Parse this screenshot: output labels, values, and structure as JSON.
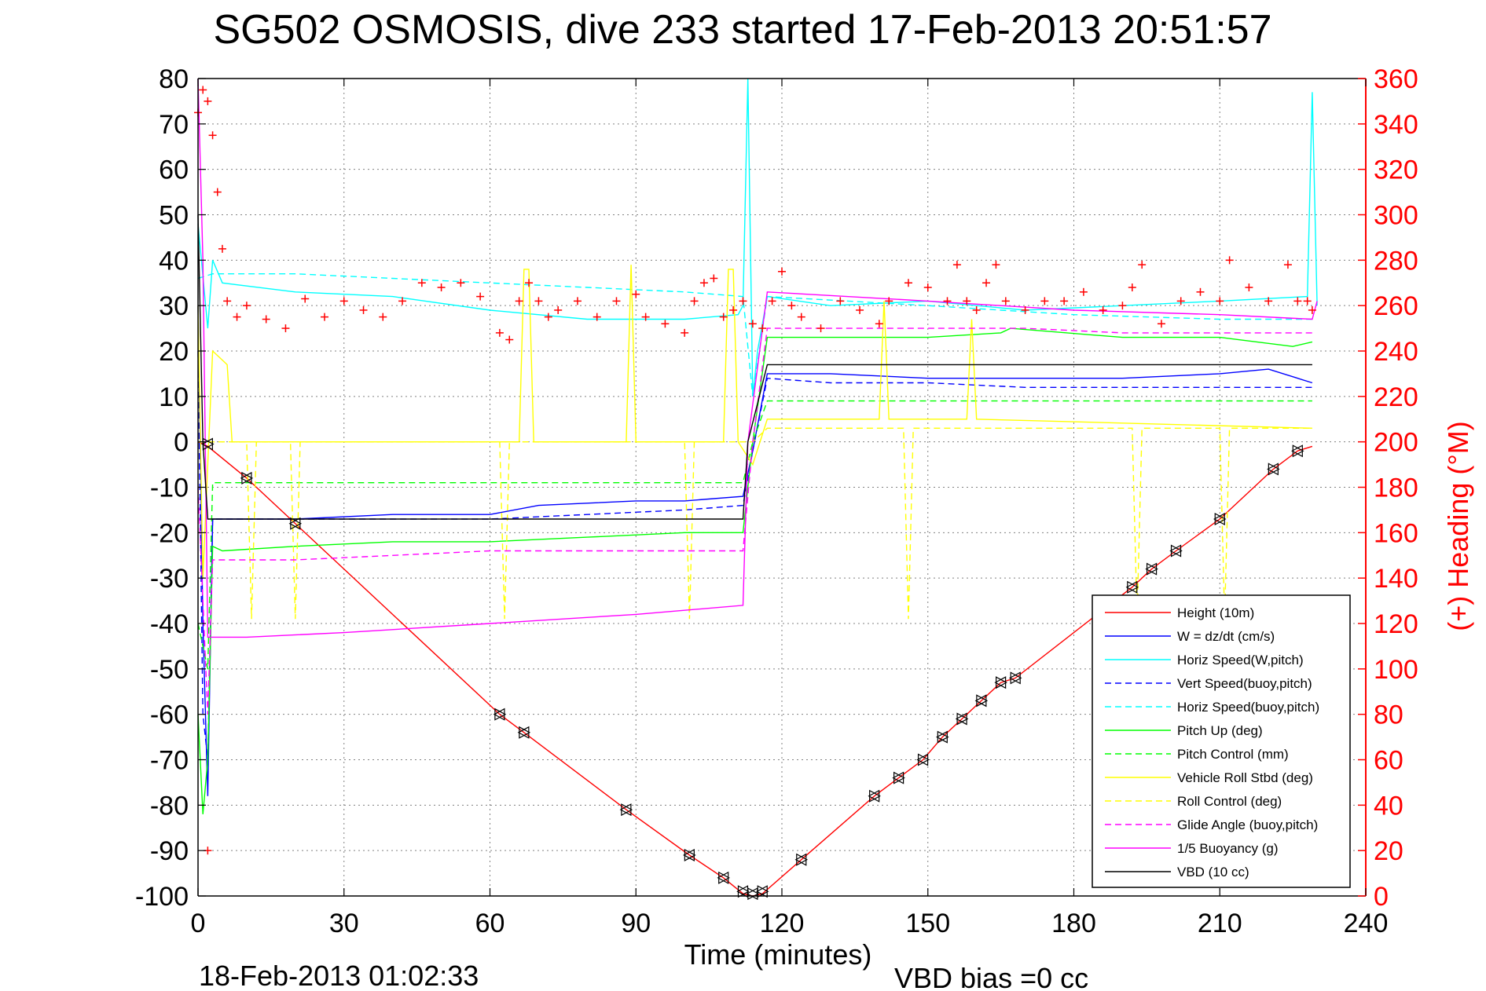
{
  "chart_data": {
    "type": "line",
    "title": "SG502 OSMOSIS, dive 233 started 17-Feb-2013 20:51:57",
    "xlabel": "Time (minutes)",
    "ylabel": "",
    "y2label": "(+) Heading (°M)",
    "footer_left": "18-Feb-2013 01:02:33",
    "footer_right": "VBD bias =0 cc",
    "xlim": [
      0,
      240
    ],
    "ylim": [
      -100,
      80
    ],
    "y2lim": [
      0,
      360
    ],
    "xticks": [
      0,
      30,
      60,
      90,
      120,
      150,
      180,
      210,
      240
    ],
    "yticks": [
      80,
      70,
      60,
      50,
      40,
      30,
      20,
      10,
      0,
      -10,
      -20,
      -30,
      -40,
      -50,
      -60,
      -70,
      -80,
      -90,
      -100
    ],
    "y2ticks": [
      360,
      340,
      320,
      300,
      280,
      260,
      240,
      220,
      200,
      180,
      160,
      140,
      120,
      100,
      80,
      60,
      40,
      20,
      0
    ],
    "grid": true,
    "legend_position": "bottom-right",
    "colors": {
      "axis": "#000000",
      "heading_axis": "#ff0000",
      "grid": "#808080"
    },
    "series": [
      {
        "name": "Height (10m)",
        "color": "#ff0000",
        "dash": "solid",
        "x": [
          0,
          2,
          10,
          20,
          62,
          67,
          88,
          101,
          108,
          112,
          114,
          116,
          124,
          139,
          144,
          149,
          153,
          157,
          161,
          165,
          168,
          192,
          196,
          201,
          210,
          221,
          226,
          229
        ],
        "y": [
          0,
          -1,
          -8,
          -18,
          -60,
          -64,
          -81,
          -91,
          -96,
          -99.5,
          -100,
          -99.5,
          -92,
          -78,
          -74,
          -70,
          -65,
          -61,
          -57,
          -53,
          -52,
          -32,
          -28,
          -24,
          -17,
          -6,
          -2,
          -1
        ]
      },
      {
        "name": "W = dz/dt (cm/s)",
        "color": "#0000ff",
        "dash": "solid",
        "x": [
          0,
          1,
          2,
          3,
          5,
          20,
          40,
          60,
          70,
          90,
          100,
          112,
          114,
          117,
          130,
          150,
          170,
          190,
          210,
          220,
          229
        ],
        "y": [
          30,
          -40,
          -78,
          -17,
          -17,
          -17,
          -16,
          -16,
          -14,
          -13,
          -13,
          -12,
          -2,
          15,
          15,
          14,
          14,
          14,
          15,
          16,
          13
        ]
      },
      {
        "name": "Horiz Speed(W,pitch)",
        "color": "#00ffff",
        "dash": "solid",
        "x": [
          0,
          2,
          3,
          5,
          20,
          40,
          60,
          80,
          100,
          111,
          112,
          113,
          114,
          115,
          117,
          130,
          150,
          170,
          190,
          210,
          228,
          229,
          230
        ],
        "y": [
          48,
          25,
          40,
          35,
          33,
          32,
          29,
          27,
          27,
          28,
          30,
          80,
          10,
          20,
          32,
          30,
          31,
          29,
          30,
          31,
          32,
          77,
          30
        ]
      },
      {
        "name": "Vert Speed(buoy,pitch)",
        "color": "#0000ff",
        "dash": "dashed",
        "x": [
          0,
          1,
          2,
          3,
          5,
          20,
          40,
          60,
          80,
          100,
          112,
          114,
          117,
          130,
          150,
          170,
          190,
          210,
          229
        ],
        "y": [
          20,
          -60,
          -70,
          -17,
          -17,
          -17,
          -17,
          -17,
          -16,
          -15,
          -14,
          -2,
          14,
          13,
          13,
          12,
          12,
          12,
          12
        ]
      },
      {
        "name": "Horiz Speed(buoy,pitch)",
        "color": "#00ffff",
        "dash": "dashed",
        "x": [
          0,
          3,
          20,
          40,
          60,
          80,
          100,
          112,
          114,
          117,
          150,
          180,
          210,
          229
        ],
        "y": [
          36,
          37,
          37,
          36,
          35,
          34,
          33,
          32,
          10,
          32,
          30,
          28,
          27,
          27
        ]
      },
      {
        "name": "Pitch Up (deg)",
        "color": "#00ff00",
        "dash": "solid",
        "x": [
          0,
          1,
          2,
          3,
          5,
          20,
          40,
          60,
          80,
          100,
          112,
          114,
          117,
          130,
          150,
          165,
          167,
          190,
          210,
          225,
          229
        ],
        "y": [
          -60,
          -82,
          -70,
          -23,
          -24,
          -23,
          -22,
          -22,
          -21,
          -20,
          -20,
          0,
          23,
          23,
          23,
          24,
          25,
          23,
          23,
          21,
          22
        ]
      },
      {
        "name": "Pitch Control (mm)",
        "color": "#00ff00",
        "dash": "dashed",
        "x": [
          0,
          2,
          3,
          5,
          112,
          114,
          117,
          229
        ],
        "y": [
          -40,
          -50,
          -9,
          -9,
          -9,
          0,
          9,
          9
        ]
      },
      {
        "name": "Vehicle Roll Stbd (deg)",
        "color": "#ffff00",
        "dash": "solid",
        "x": [
          0,
          1,
          3,
          5,
          6,
          7,
          60,
          66,
          67,
          68,
          69,
          88,
          89,
          90,
          108,
          109,
          110,
          111,
          114,
          117,
          130,
          140,
          141,
          142,
          158,
          159,
          160,
          229
        ],
        "y": [
          30,
          -30,
          20,
          18,
          17,
          0,
          0,
          0,
          38,
          38,
          0,
          0,
          39,
          0,
          0,
          38,
          38,
          0,
          -5,
          5,
          5,
          5,
          31,
          5,
          5,
          27,
          5,
          3
        ]
      },
      {
        "name": "Roll Control (deg)",
        "color": "#ffff00",
        "dash": "dashed",
        "x": [
          0,
          3,
          10,
          11,
          12,
          19,
          20,
          21,
          62,
          63,
          64,
          100,
          101,
          102,
          114,
          117,
          145,
          146,
          147,
          192,
          193,
          194,
          210,
          211,
          212,
          229
        ],
        "y": [
          0,
          0,
          0,
          -39,
          0,
          0,
          -39,
          0,
          0,
          -39,
          0,
          0,
          -39,
          0,
          0,
          3,
          3,
          -39,
          3,
          3,
          -39,
          3,
          3,
          -39,
          3,
          3
        ]
      },
      {
        "name": "Glide Angle (buoy,pitch)",
        "color": "#ff00ff",
        "dash": "dashed",
        "x": [
          0,
          2,
          3,
          5,
          20,
          40,
          60,
          80,
          100,
          112,
          114,
          117,
          130,
          150,
          170,
          190,
          210,
          229
        ],
        "y": [
          -10,
          -60,
          -26,
          -26,
          -26,
          -25,
          -24,
          -24,
          -24,
          -24,
          0,
          25,
          25,
          25,
          25,
          24,
          24,
          24
        ]
      },
      {
        "name": "1/5 Buoyancy (g)",
        "color": "#ff00ff",
        "dash": "solid",
        "x": [
          0,
          1,
          2,
          3,
          10,
          30,
          60,
          90,
          112,
          113,
          117,
          150,
          180,
          210,
          229,
          230
        ],
        "y": [
          80,
          40,
          -43,
          -43,
          -43,
          -42,
          -40,
          -38,
          -36,
          0,
          33,
          31,
          29,
          28,
          27,
          31
        ]
      },
      {
        "name": "VBD (10 cc)",
        "color": "#000000",
        "dash": "solid",
        "x": [
          0,
          1,
          2,
          3,
          112,
          113,
          117,
          229
        ],
        "y": [
          50,
          0,
          -17,
          -17,
          -17,
          0,
          17,
          17
        ]
      }
    ],
    "heading": {
      "name": "(+) Heading",
      "color": "#ff0000",
      "marker": "+",
      "x": [
        0,
        1,
        2,
        3,
        4,
        5,
        6,
        8,
        10,
        14,
        18,
        22,
        26,
        30,
        34,
        38,
        42,
        46,
        50,
        54,
        58,
        62,
        64,
        66,
        68,
        70,
        72,
        74,
        78,
        82,
        86,
        90,
        92,
        96,
        100,
        102,
        104,
        106,
        108,
        110,
        112,
        114,
        116,
        118,
        120,
        122,
        124,
        128,
        132,
        136,
        140,
        142,
        146,
        150,
        154,
        156,
        158,
        160,
        162,
        164,
        166,
        170,
        174,
        178,
        182,
        186,
        190,
        192,
        194,
        198,
        202,
        206,
        210,
        212,
        216,
        220,
        224,
        226,
        228,
        229
      ],
      "y": [
        345,
        355,
        350,
        335,
        310,
        285,
        262,
        255,
        260,
        254,
        250,
        263,
        255,
        262,
        258,
        255,
        262,
        270,
        268,
        270,
        264,
        248,
        245,
        262,
        270,
        262,
        255,
        258,
        262,
        255,
        262,
        265,
        255,
        252,
        248,
        262,
        270,
        272,
        255,
        258,
        262,
        252,
        250,
        262,
        275,
        260,
        255,
        250,
        262,
        258,
        252,
        262,
        270,
        268,
        262,
        278,
        262,
        258,
        270,
        278,
        262,
        258,
        262,
        262,
        266,
        258,
        260,
        268,
        278,
        252,
        262,
        266,
        262,
        280,
        268,
        262,
        278,
        262,
        262,
        258
      ]
    },
    "outliers": {
      "heading": [
        {
          "x": 2,
          "y": 20
        }
      ]
    },
    "dive_markers": {
      "marker": "triangle",
      "x": [
        2,
        10,
        20,
        62,
        67,
        88,
        101,
        108,
        112,
        114,
        116,
        124,
        139,
        144,
        149,
        153,
        157,
        161,
        165,
        168,
        192,
        196,
        201,
        210,
        221,
        226
      ],
      "y": [
        -0.5,
        -8,
        -18,
        -60,
        -64,
        -81,
        -91,
        -96,
        -99,
        -99.5,
        -99,
        -92,
        -78,
        -74,
        -70,
        -65,
        -61,
        -57,
        -53,
        -52,
        -32,
        -28,
        -24,
        -17,
        -6,
        -2
      ]
    }
  }
}
